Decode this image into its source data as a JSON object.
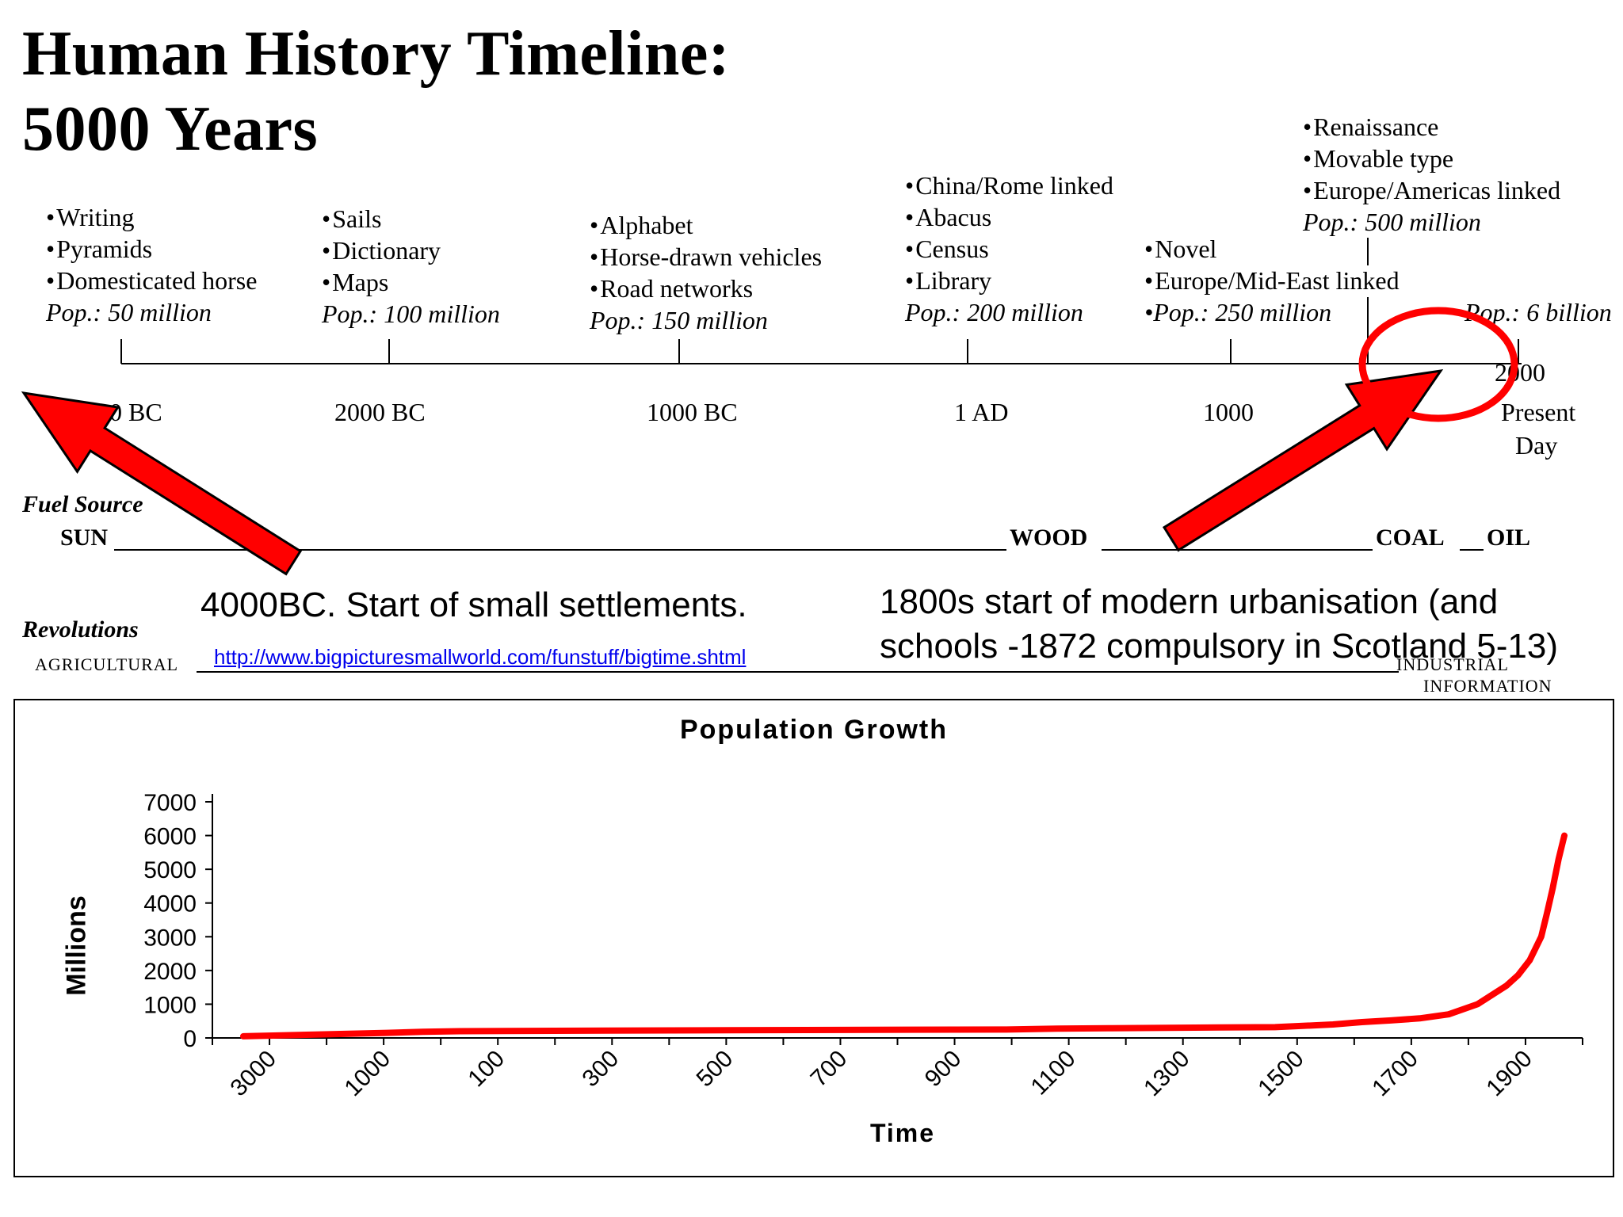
{
  "title": {
    "line1": "Human History Timeline:",
    "line2": "5000 Years"
  },
  "events": [
    {
      "items": [
        "Writing",
        "Pyramids",
        "Domesticated horse"
      ],
      "pop": "Pop.: 50 million"
    },
    {
      "items": [
        "Sails",
        "Dictionary",
        "Maps"
      ],
      "pop": "Pop.: 100 million"
    },
    {
      "items": [
        "Alphabet",
        "Horse-drawn vehicles",
        "Road networks"
      ],
      "pop": "Pop.: 150 million"
    },
    {
      "items": [
        "China/Rome linked",
        "Abacus",
        "Census",
        "Library"
      ],
      "pop": "Pop.: 200 million"
    },
    {
      "items": [
        "Novel",
        "Europe/Mid-East linked"
      ],
      "pop": "•Pop.: 250 million"
    },
    {
      "items": [
        "Renaissance",
        "Movable type",
        "Europe/Americas linked"
      ],
      "pop": "Pop.: 500 million"
    },
    {
      "items": [],
      "pop": "Pop.: 6 billion"
    }
  ],
  "timeline_labels": {
    "t3000bc": "3000 BC",
    "t2000bc": "2000 BC",
    "t1000bc": "1000 BC",
    "t1ad": "1 AD",
    "t1000": "1000",
    "t2000": "2000",
    "present": "Present",
    "day": "Day"
  },
  "fuel": {
    "heading": "Fuel Source",
    "sun": "SUN",
    "wood": "WOOD",
    "coal": "COAL",
    "oil": "OIL"
  },
  "revolutions": {
    "heading": "Revolutions",
    "agricultural": "AGRICULTURAL",
    "industrial": "INDUSTRIAL",
    "information": "INFORMATION"
  },
  "notes": {
    "left": "4000BC. Start of small settlements.",
    "right_line1": "1800s  start of modern urbanisation (and",
    "right_line2": "schools -1872 compulsory in Scotland 5-13)"
  },
  "link": "http://www.bigpicturesmallworld.com/funstuff/bigtime.shtml",
  "annotation_color": "#ff0000",
  "chart_data": {
    "type": "line",
    "title": "Population Growth",
    "xlabel": "Time",
    "ylabel": "Millions",
    "ylim": [
      0,
      7000
    ],
    "yticks": [
      0,
      1000,
      2000,
      3000,
      4000,
      5000,
      6000,
      7000
    ],
    "xtick_labels": [
      "3000",
      "1000",
      "100",
      "300",
      "500",
      "700",
      "900",
      "1100",
      "1300",
      "1500",
      "1700",
      "1900"
    ],
    "series": [
      {
        "color": "#ff0000",
        "x": [
          -3000,
          -2000,
          -1000,
          -500,
          1,
          500,
          1000,
          1100,
          1200,
          1300,
          1400,
          1500,
          1600,
          1650,
          1700,
          1750,
          1800,
          1850,
          1900,
          1920,
          1940,
          1960,
          1970,
          1980,
          1990,
          2000
        ],
        "y": [
          50,
          100,
          150,
          180,
          200,
          230,
          250,
          275,
          290,
          300,
          310,
          320,
          400,
          470,
          520,
          580,
          700,
          1000,
          1550,
          1860,
          2300,
          3000,
          3700,
          4450,
          5300,
          6000
        ]
      }
    ],
    "legend": "none",
    "grid": false
  }
}
